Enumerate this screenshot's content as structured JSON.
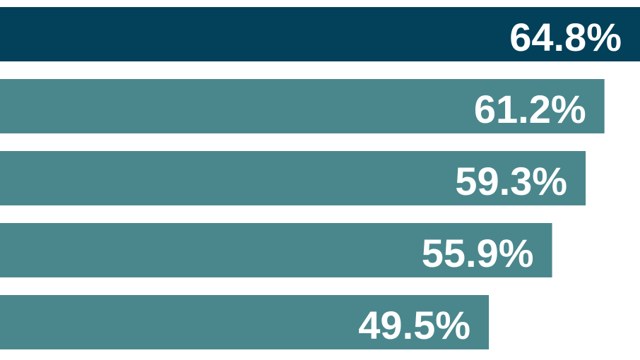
{
  "chart_data": {
    "type": "bar",
    "orientation": "horizontal",
    "values": [
      64.8,
      61.2,
      59.3,
      55.9,
      49.5
    ],
    "value_labels": [
      "64.8%",
      "61.2%",
      "59.3%",
      "55.9%",
      "49.5%"
    ],
    "colors": [
      "#03405a",
      "#4a878d",
      "#4a878d",
      "#4a878d",
      "#4a878d"
    ],
    "xlim": [
      0,
      64.8
    ]
  }
}
